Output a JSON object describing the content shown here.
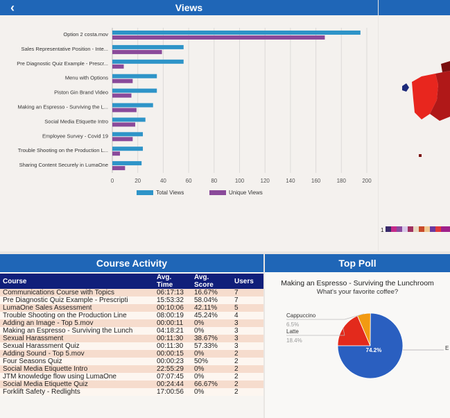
{
  "views": {
    "title": "Views",
    "back_icon": "chevron-left-icon",
    "chart_data": {
      "type": "bar",
      "orientation": "horizontal",
      "categories": [
        "Option 2 costa.mov",
        "Sales Representative Position - Inte...",
        "Pre Diagnostic Quiz Example - Prescr...",
        "Menu with Options",
        "Piston Gin Brand Video",
        "Making an Espresso - Surviving the L...",
        "Social Media Etiquette Intro",
        "Employee Survey - Covid 19",
        "Trouble Shooting on the Production L...",
        "Sharing Content Securely in LumaOne"
      ],
      "series": [
        {
          "name": "Total Views",
          "color": "#2e94c8",
          "values": [
            195,
            56,
            56,
            35,
            35,
            32,
            26,
            24,
            24,
            23
          ]
        },
        {
          "name": "Unique Views",
          "color": "#8a4a9a",
          "values": [
            167,
            39,
            9,
            16,
            15,
            19,
            18,
            16,
            6,
            10
          ]
        }
      ],
      "x_ticks": [
        "0",
        "20",
        "40",
        "60",
        "80",
        "100",
        "120",
        "140",
        "160",
        "180",
        "200"
      ],
      "xlim": [
        0,
        200
      ],
      "grid": true,
      "legend": "bottom"
    }
  },
  "map": {
    "legend_min": "1",
    "colors": [
      "#1c2a7a",
      "#e8261e",
      "#b01818",
      "#7a1010"
    ]
  },
  "course_activity": {
    "title": "Course Activity",
    "columns": [
      "Course",
      "Avg. Time",
      "Avg. Score",
      "Users"
    ],
    "rows": [
      [
        "Communications Course with Topics",
        "06:17:13",
        "16.67%",
        "7"
      ],
      [
        "Pre Diagnostic Quiz Example - Prescripti",
        "15:53:32",
        "58.04%",
        "7"
      ],
      [
        "LumaOne Sales Assessment",
        "00:10:06",
        "42.11%",
        "5"
      ],
      [
        "Trouble Shooting on the Production Line",
        "08:00:19",
        "45.24%",
        "4"
      ],
      [
        "Adding an Image - Top 5.mov",
        "00:00:11",
        "0%",
        "3"
      ],
      [
        "Making an Espresso - Surviving the Lunch",
        "04:18:21",
        "0%",
        "3"
      ],
      [
        "Sexual Harassment",
        "00:11:30",
        "38.67%",
        "3"
      ],
      [
        "Sexual Harassment Quiz",
        "00:11:30",
        "57.33%",
        "3"
      ],
      [
        "Adding Sound - Top 5.mov",
        "00:00:15",
        "0%",
        "2"
      ],
      [
        "Four Seasons Quiz",
        "00:00:23",
        "50%",
        "2"
      ],
      [
        "Social Media Etiquette Intro",
        "22:55:29",
        "0%",
        "2"
      ],
      [
        "JTM knowledge flow using LumaOne",
        "07:07:45",
        "0%",
        "2"
      ],
      [
        "Social Media Etiquette Quiz",
        "00:24:44",
        "66.67%",
        "2"
      ],
      [
        "Forklift Safety - Redlights",
        "17:00:56",
        "0%",
        "2"
      ]
    ]
  },
  "top_poll": {
    "title": "Top Poll",
    "poll_name": "Making an Espresso - Surviving the Lunchroom",
    "question": "What's your favorite coffee?",
    "chart_data": {
      "type": "pie",
      "slices": [
        {
          "label": "E",
          "value": 74.2,
          "value_label": "74.2%",
          "color": "#2a5fc0"
        },
        {
          "label": "Latte",
          "value": 18.4,
          "value_label": "18.4%",
          "color": "#e32a1c"
        },
        {
          "label": "Cappuccino",
          "value": 6.5,
          "value_label": "6.5%",
          "color": "#f29a12"
        }
      ]
    }
  }
}
